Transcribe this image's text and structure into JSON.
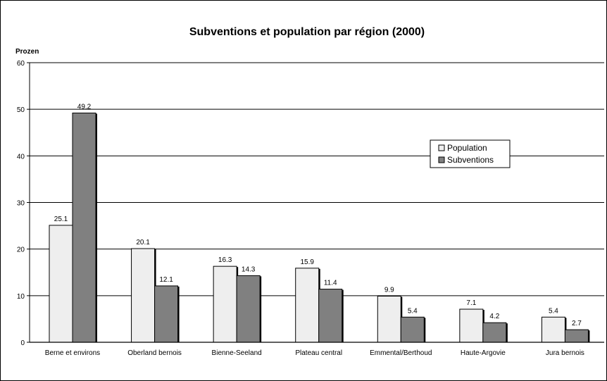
{
  "chart_data": {
    "type": "bar",
    "title": "Subventions et population par région (2000)",
    "xlabel": "",
    "ylabel": "Prozen",
    "ylim": [
      0,
      60
    ],
    "yticks": [
      0,
      10,
      20,
      30,
      40,
      50,
      60
    ],
    "grid": true,
    "legend_position": "right",
    "categories": [
      "Berne et environs",
      "Oberland bernois",
      "Bienne-Seeland",
      "Plateau central",
      "Emmental/Berthoud",
      "Haute-Argovie",
      "Jura bernois"
    ],
    "series": [
      {
        "name": "Population",
        "color": "#eeeeee",
        "values": [
          25.1,
          20.1,
          16.3,
          15.9,
          9.9,
          7.1,
          5.4
        ]
      },
      {
        "name": "Subventions",
        "color": "#808080",
        "values": [
          49.2,
          12.1,
          14.3,
          11.4,
          5.4,
          4.2,
          2.7
        ]
      }
    ]
  }
}
